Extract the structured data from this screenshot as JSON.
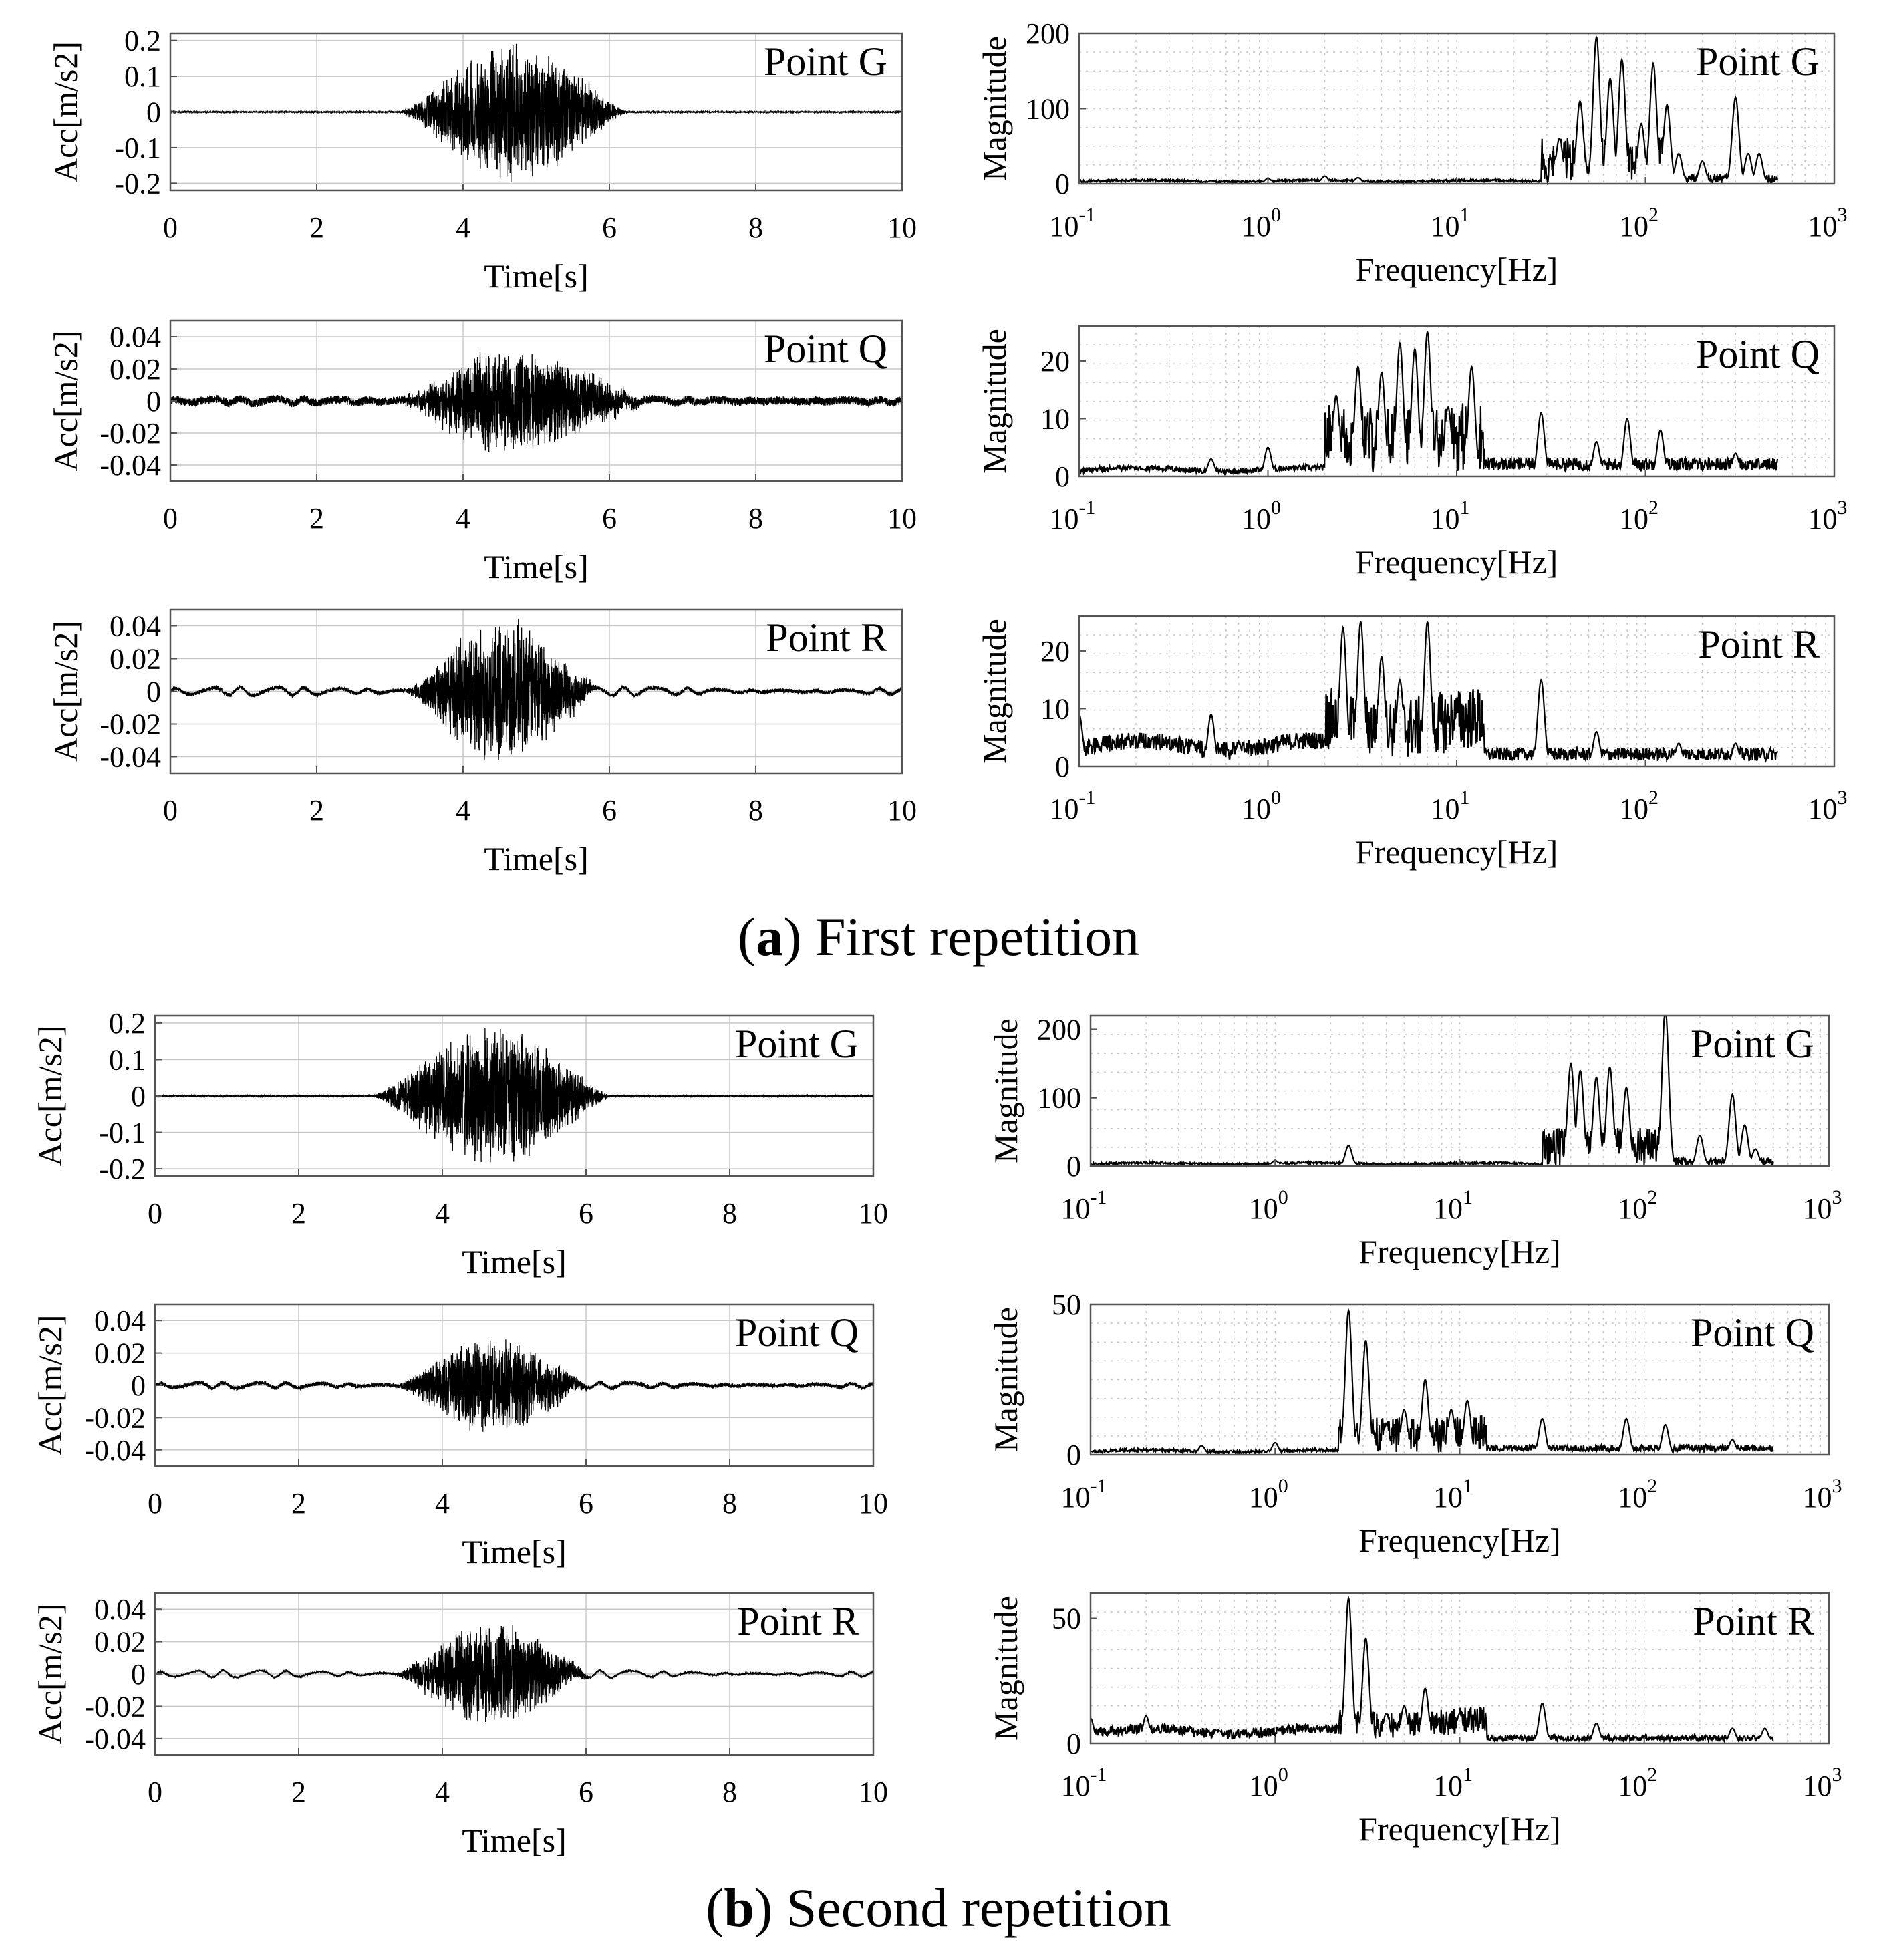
{
  "captions": {
    "a_letter": "a",
    "a_text": "First repetition",
    "b_letter": "b",
    "b_text": "Second repetition"
  },
  "colors": {
    "line": "#000000",
    "grid": "#c8c8c8",
    "axis": "#555555"
  },
  "chart_data": [
    {
      "id": "a-time-G",
      "type": "line",
      "group": "a",
      "kind": "time",
      "title": "Point G",
      "xlabel": "Time[s]",
      "ylabel": "Acc[m/s2]",
      "xlim": [
        0,
        10
      ],
      "ylim": [
        -0.22,
        0.22
      ],
      "xticks": [
        0,
        2,
        4,
        6,
        8,
        10
      ],
      "xticklabels": [
        "0",
        "2",
        "4",
        "6",
        "8",
        "10"
      ],
      "yticks": [
        0.2,
        0.1,
        0,
        -0.1,
        -0.2
      ],
      "yticklabels": [
        "0.2",
        "0.1",
        "0",
        "-0.1",
        "-0.2"
      ],
      "signal": {
        "noise": 0.002,
        "peak": 0.2,
        "start": 3.1,
        "end": 6.3,
        "center": 4.7,
        "low_freq_amp": 0.0,
        "seed": 11
      }
    },
    {
      "id": "a-fft-G",
      "type": "line",
      "group": "a",
      "kind": "fft",
      "title": "Point G",
      "xlabel": "Frequency[Hz]",
      "ylabel": "Magnitude",
      "xlim": [
        0.1,
        1000
      ],
      "ylim": [
        0,
        200
      ],
      "xticks_exp": [
        -1,
        0,
        1,
        2,
        3
      ],
      "yticks": [
        200,
        100,
        0
      ],
      "yticklabels": [
        "200",
        "100",
        "0"
      ],
      "peaks": [
        [
          0.5,
          4
        ],
        [
          1.0,
          7
        ],
        [
          2.0,
          10
        ],
        [
          3.0,
          8
        ],
        [
          35,
          60
        ],
        [
          45,
          110
        ],
        [
          55,
          195
        ],
        [
          65,
          140
        ],
        [
          75,
          165
        ],
        [
          95,
          80
        ],
        [
          110,
          160
        ],
        [
          130,
          105
        ],
        [
          150,
          40
        ],
        [
          200,
          30
        ],
        [
          300,
          115
        ],
        [
          350,
          40
        ],
        [
          400,
          40
        ]
      ],
      "spectrum": {
        "low_level": 3,
        "band_lo": 28,
        "band_hi": 130,
        "band_level": 50,
        "tail_level": 8,
        "end": 500,
        "seed": 21
      }
    },
    {
      "id": "a-time-Q",
      "type": "line",
      "group": "a",
      "kind": "time",
      "title": "Point Q",
      "xlabel": "Time[s]",
      "ylabel": "Acc[m/s2]",
      "xlim": [
        0,
        10
      ],
      "ylim": [
        -0.05,
        0.05
      ],
      "xticks": [
        0,
        2,
        4,
        6,
        8,
        10
      ],
      "xticklabels": [
        "0",
        "2",
        "4",
        "6",
        "8",
        "10"
      ],
      "yticks": [
        0.04,
        0.02,
        0,
        -0.02,
        -0.04
      ],
      "yticklabels": [
        "0.04",
        "0.02",
        "0",
        "-0.02",
        "-0.04"
      ],
      "signal": {
        "noise": 0.0025,
        "peak": 0.034,
        "start": 3.1,
        "end": 6.6,
        "center": 4.6,
        "low_freq_amp": 0.0015,
        "seed": 12
      }
    },
    {
      "id": "a-fft-Q",
      "type": "line",
      "group": "a",
      "kind": "fft",
      "title": "Point Q",
      "xlabel": "Frequency[Hz]",
      "ylabel": "Magnitude",
      "xlim": [
        0.1,
        1000
      ],
      "ylim": [
        0,
        26
      ],
      "xticks_exp": [
        -1,
        0,
        1,
        2,
        3
      ],
      "yticks": [
        20,
        10,
        0
      ],
      "yticklabels": [
        "20",
        "10",
        "0"
      ],
      "peaks": [
        [
          0.5,
          3
        ],
        [
          1.0,
          5
        ],
        [
          2.3,
          14
        ],
        [
          3.0,
          19
        ],
        [
          4.0,
          18
        ],
        [
          5.0,
          23
        ],
        [
          6.0,
          22
        ],
        [
          7.0,
          25
        ],
        [
          9.0,
          12
        ],
        [
          12.0,
          19
        ],
        [
          28,
          11
        ],
        [
          55,
          6
        ],
        [
          80,
          10
        ],
        [
          120,
          8
        ],
        [
          300,
          4
        ]
      ],
      "spectrum": {
        "low_level": 1,
        "band_lo": 2,
        "band_hi": 14,
        "band_level": 10,
        "tail_level": 1.5,
        "end": 500,
        "seed": 22
      }
    },
    {
      "id": "a-time-R",
      "type": "line",
      "group": "a",
      "kind": "time",
      "title": "Point R",
      "xlabel": "Time[s]",
      "ylabel": "Acc[m/s2]",
      "xlim": [
        0,
        10
      ],
      "ylim": [
        -0.05,
        0.05
      ],
      "xticks": [
        0,
        2,
        4,
        6,
        8,
        10
      ],
      "xticklabels": [
        "0",
        "2",
        "4",
        "6",
        "8",
        "10"
      ],
      "yticks": [
        0.04,
        0.02,
        0,
        -0.02,
        -0.04
      ],
      "yticklabels": [
        "0.04",
        "0.02",
        "0",
        "-0.02",
        "-0.04"
      ],
      "signal": {
        "noise": 0.0012,
        "peak": 0.046,
        "start": 3.2,
        "end": 5.9,
        "center": 4.5,
        "low_freq_amp": 0.0025,
        "seed": 13
      }
    },
    {
      "id": "a-fft-R",
      "type": "line",
      "group": "a",
      "kind": "fft",
      "title": "Point R",
      "xlabel": "Frequency[Hz]",
      "ylabel": "Magnitude",
      "xlim": [
        0.1,
        1000
      ],
      "ylim": [
        0,
        26
      ],
      "xticks_exp": [
        -1,
        0,
        1,
        2,
        3
      ],
      "yticks": [
        20,
        10,
        0
      ],
      "yticklabels": [
        "20",
        "10",
        "0"
      ],
      "peaks": [
        [
          0.1,
          9
        ],
        [
          0.3,
          1
        ],
        [
          0.4,
          4
        ],
        [
          0.5,
          9
        ],
        [
          0.7,
          4
        ],
        [
          1.5,
          3
        ],
        [
          2.5,
          24
        ],
        [
          3.1,
          25
        ],
        [
          4.0,
          19
        ],
        [
          5.0,
          15
        ],
        [
          7.0,
          25
        ],
        [
          10.0,
          9
        ],
        [
          28,
          15
        ],
        [
          55,
          6
        ],
        [
          150,
          4
        ],
        [
          300,
          4
        ]
      ],
      "spectrum": {
        "low_level": 3,
        "band_lo": 2,
        "band_hi": 14,
        "band_level": 9,
        "tail_level": 1.5,
        "end": 500,
        "seed": 23
      }
    },
    {
      "id": "b-time-G",
      "type": "line",
      "group": "b",
      "kind": "time",
      "title": "Point G",
      "xlabel": "Time[s]",
      "ylabel": "Acc[m/s2]",
      "xlim": [
        0,
        10
      ],
      "ylim": [
        -0.22,
        0.22
      ],
      "xticks": [
        0,
        2,
        4,
        6,
        8,
        10
      ],
      "xticklabels": [
        "0",
        "2",
        "4",
        "6",
        "8",
        "10"
      ],
      "yticks": [
        0.2,
        0.1,
        0,
        -0.1,
        -0.2
      ],
      "yticklabels": [
        "0.2",
        "0.1",
        "0",
        "-0.1",
        "-0.2"
      ],
      "signal": {
        "noise": 0.002,
        "peak": 0.2,
        "start": 3.0,
        "end": 6.4,
        "center": 4.7,
        "low_freq_amp": 0.0,
        "seed": 14
      }
    },
    {
      "id": "b-fft-G",
      "type": "line",
      "group": "b",
      "kind": "fft",
      "title": "Point G",
      "xlabel": "Frequency[Hz]",
      "ylabel": "Magnitude",
      "xlim": [
        0.1,
        1000
      ],
      "ylim": [
        0,
        220
      ],
      "xticks_exp": [
        -1,
        0,
        1,
        2,
        3
      ],
      "yticks": [
        200,
        100,
        0
      ],
      "yticklabels": [
        "200",
        "100",
        "0"
      ],
      "peaks": [
        [
          1.0,
          8
        ],
        [
          2.5,
          30
        ],
        [
          40,
          150
        ],
        [
          45,
          140
        ],
        [
          55,
          130
        ],
        [
          65,
          145
        ],
        [
          80,
          115
        ],
        [
          130,
          230
        ],
        [
          200,
          45
        ],
        [
          300,
          105
        ],
        [
          350,
          60
        ],
        [
          400,
          25
        ]
      ],
      "spectrum": {
        "low_level": 3,
        "band_lo": 28,
        "band_hi": 130,
        "band_level": 45,
        "tail_level": 8,
        "end": 500,
        "seed": 24
      }
    },
    {
      "id": "b-time-Q",
      "type": "line",
      "group": "b",
      "kind": "time",
      "title": "Point Q",
      "xlabel": "Time[s]",
      "ylabel": "Acc[m/s2]",
      "xlim": [
        0,
        10
      ],
      "ylim": [
        -0.05,
        0.05
      ],
      "xticks": [
        0,
        2,
        4,
        6,
        8,
        10
      ],
      "xticklabels": [
        "0",
        "2",
        "4",
        "6",
        "8",
        "10"
      ],
      "yticks": [
        0.04,
        0.02,
        0,
        -0.02,
        -0.04
      ],
      "yticklabels": [
        "0.04",
        "0.02",
        "0",
        "-0.02",
        "-0.04"
      ],
      "signal": {
        "noise": 0.0012,
        "peak": 0.031,
        "start": 3.3,
        "end": 6.1,
        "center": 4.7,
        "low_freq_amp": 0.0018,
        "seed": 15
      }
    },
    {
      "id": "b-fft-Q",
      "type": "line",
      "group": "b",
      "kind": "fft",
      "title": "Point Q",
      "xlabel": "Frequency[Hz]",
      "ylabel": "Magnitude",
      "xlim": [
        0.1,
        1000
      ],
      "ylim": [
        0,
        50
      ],
      "xticks_exp": [
        -1,
        0,
        1,
        2,
        3
      ],
      "yticks": [
        50,
        0
      ],
      "yticklabels": [
        "50",
        "0"
      ],
      "peaks": [
        [
          0.4,
          3
        ],
        [
          1.0,
          4
        ],
        [
          2.5,
          48
        ],
        [
          3.1,
          38
        ],
        [
          4.0,
          10
        ],
        [
          5.0,
          15
        ],
        [
          6.5,
          25
        ],
        [
          9.0,
          15
        ],
        [
          11.0,
          18
        ],
        [
          28,
          12
        ],
        [
          80,
          12
        ],
        [
          130,
          10
        ],
        [
          300,
          5
        ]
      ],
      "spectrum": {
        "low_level": 1,
        "band_lo": 2.2,
        "band_hi": 14,
        "band_level": 10,
        "tail_level": 1.5,
        "end": 500,
        "seed": 25
      }
    },
    {
      "id": "b-time-R",
      "type": "line",
      "group": "b",
      "kind": "time",
      "title": "Point R",
      "xlabel": "Time[s]",
      "ylabel": "Acc[m/s2]",
      "xlim": [
        0,
        10
      ],
      "ylim": [
        -0.05,
        0.05
      ],
      "xticks": [
        0,
        2,
        4,
        6,
        8,
        10
      ],
      "xticklabels": [
        "0",
        "2",
        "4",
        "6",
        "8",
        "10"
      ],
      "yticks": [
        0.04,
        0.02,
        0,
        -0.02,
        -0.04
      ],
      "yticklabels": [
        "0.04",
        "0.02",
        "0",
        "-0.02",
        "-0.04"
      ],
      "signal": {
        "noise": 0.0006,
        "peak": 0.034,
        "start": 3.3,
        "end": 6.1,
        "center": 4.7,
        "low_freq_amp": 0.0022,
        "seed": 16
      }
    },
    {
      "id": "b-fft-R",
      "type": "line",
      "group": "b",
      "kind": "fft",
      "title": "Point R",
      "xlabel": "Frequency[Hz]",
      "ylabel": "Magnitude",
      "xlim": [
        0.1,
        1000
      ],
      "ylim": [
        0,
        60
      ],
      "xticks_exp": [
        -1,
        0,
        1,
        2,
        3
      ],
      "yticks": [
        50,
        0
      ],
      "yticklabels": [
        "50",
        "0"
      ],
      "peaks": [
        [
          0.1,
          10
        ],
        [
          0.2,
          11
        ],
        [
          0.5,
          5
        ],
        [
          1.5,
          3
        ],
        [
          2.5,
          58
        ],
        [
          3.1,
          42
        ],
        [
          4.0,
          12
        ],
        [
          5.0,
          15
        ],
        [
          6.5,
          22
        ],
        [
          10.0,
          12
        ],
        [
          28,
          16
        ],
        [
          55,
          8
        ],
        [
          300,
          6
        ],
        [
          450,
          6
        ]
      ],
      "spectrum": {
        "low_level": 4,
        "band_lo": 2.2,
        "band_hi": 14,
        "band_level": 9,
        "tail_level": 1.5,
        "end": 500,
        "seed": 26
      }
    }
  ]
}
